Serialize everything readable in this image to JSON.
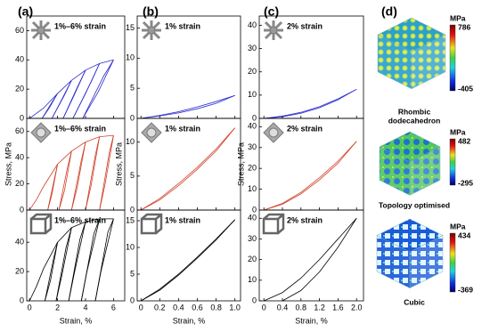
{
  "panels": [
    "(a)",
    "(b)",
    "(c)",
    "(d)"
  ],
  "lattices": [
    {
      "unit": "MPa",
      "max": 786,
      "min": -405,
      "name": [
        "Rhombic",
        "dodecahedron"
      ]
    },
    {
      "unit": "MPa",
      "max": 482,
      "min": -295,
      "name": [
        "Topology optimised"
      ]
    },
    {
      "unit": "MPa",
      "max": 434,
      "min": -369,
      "name": [
        "Cubic"
      ]
    }
  ],
  "chart_data": [
    {
      "type": "line",
      "annotation": "1%–6% strain",
      "xlim": [
        -0.2,
        6.8
      ],
      "ylim": [
        0,
        70
      ],
      "xticks": [
        0,
        2,
        4,
        6
      ],
      "xtick_labels": false,
      "yticks": [
        0,
        20,
        40,
        60
      ],
      "series": [
        {
          "color": "#2b2bd0",
          "x": [
            0,
            1,
            2,
            3,
            4,
            5,
            6
          ],
          "values": [
            0,
            7,
            17,
            26,
            33,
            37.5,
            40
          ]
        },
        {
          "color": "#2b2bd0",
          "x": [
            2,
            1.4,
            0.9,
            null,
            3,
            2.2,
            1.6,
            null,
            4,
            3.1,
            2.4,
            null,
            5,
            4,
            3.1,
            null,
            6,
            4.9,
            3.8
          ],
          "values": [
            17,
            7,
            0,
            null,
            26,
            11,
            0,
            null,
            33,
            14,
            0,
            null,
            37.5,
            17,
            0,
            null,
            40,
            18,
            0
          ]
        },
        {
          "color": "#2b2bd0",
          "x": [
            0.9,
            1.6,
            2,
            null,
            1.6,
            2.5,
            3,
            null,
            2.4,
            3.4,
            4,
            null,
            3.1,
            4.4,
            5,
            null,
            3.8,
            5.3,
            6
          ],
          "values": [
            0,
            11,
            17,
            null,
            0,
            16,
            26,
            null,
            0,
            21,
            33,
            null,
            0,
            25,
            37.5,
            null,
            0,
            29,
            40
          ]
        }
      ]
    },
    {
      "type": "line",
      "annotation": "1%–6% strain",
      "ylabel": "Stress, MPa",
      "xlim": [
        -0.2,
        6.8
      ],
      "ylim": [
        0,
        70
      ],
      "xticks": [
        0,
        2,
        4,
        6
      ],
      "xtick_labels": false,
      "yticks": [
        0,
        20,
        40,
        60
      ],
      "series": [
        {
          "color": "#d0402a",
          "x": [
            0,
            0.5,
            1,
            2,
            3,
            4,
            5,
            6
          ],
          "values": [
            0,
            8,
            18,
            35,
            45,
            52,
            56,
            57
          ]
        },
        {
          "color": "#d0402a",
          "x": [
            2,
            1.6,
            1.3,
            null,
            3,
            2.5,
            2.1,
            null,
            4,
            3.4,
            3,
            null,
            5,
            4.4,
            4,
            null,
            6,
            5.4,
            5
          ],
          "values": [
            35,
            12,
            0,
            null,
            45,
            15,
            0,
            null,
            52,
            17,
            0,
            null,
            56,
            19,
            0,
            null,
            57,
            20,
            0
          ]
        },
        {
          "color": "#d0402a",
          "x": [
            1.3,
            1.8,
            2,
            null,
            2.1,
            2.7,
            3,
            null,
            3,
            3.7,
            4,
            null,
            4,
            4.7,
            5,
            null,
            5,
            5.7,
            6
          ],
          "values": [
            0,
            25,
            35,
            null,
            0,
            32,
            45,
            null,
            0,
            38,
            52,
            null,
            0,
            42,
            56,
            null,
            0,
            44,
            57
          ]
        }
      ]
    },
    {
      "type": "line",
      "annotation": "1%–6% strain",
      "xlabel": "Strain, %",
      "xlim": [
        -0.2,
        6.8
      ],
      "ylim": [
        0,
        62
      ],
      "xticks": [
        0,
        2,
        4,
        6
      ],
      "yticks": [
        0,
        20,
        40
      ],
      "series": [
        {
          "color": "#000000",
          "x": [
            0,
            0.5,
            1,
            2,
            3,
            4,
            5,
            6
          ],
          "values": [
            0,
            10,
            22,
            40,
            50,
            54,
            56,
            56
          ]
        },
        {
          "color": "#000000",
          "x": [
            2,
            1.5,
            1.1,
            null,
            3,
            2.3,
            1.9,
            null,
            4,
            3.2,
            2.8,
            null,
            5,
            4.1,
            3.7,
            null,
            6,
            5.1,
            4.7
          ],
          "values": [
            40,
            14,
            0,
            null,
            50,
            17,
            0,
            null,
            54,
            19,
            0,
            null,
            56,
            20,
            0,
            null,
            56,
            20,
            0
          ]
        },
        {
          "color": "#000000",
          "x": [
            1.1,
            1.7,
            2,
            null,
            1.9,
            2.6,
            3,
            null,
            2.8,
            3.6,
            4,
            null,
            3.7,
            4.6,
            5,
            null,
            4.7,
            5.6,
            6
          ],
          "values": [
            0,
            28,
            40,
            null,
            0,
            36,
            50,
            null,
            0,
            42,
            54,
            null,
            0,
            46,
            56,
            null,
            0,
            47,
            56
          ]
        }
      ]
    },
    {
      "type": "line",
      "annotation": "1% strain",
      "xlim": [
        -0.04,
        1.06
      ],
      "ylim": [
        0,
        17
      ],
      "xticks": [
        0,
        0.2,
        0.4,
        0.6,
        0.8,
        1
      ],
      "xtick_labels": false,
      "yticks": [
        0,
        5,
        10,
        15
      ],
      "series": [
        {
          "color": "#2b2bd0",
          "x": [
            0,
            0.2,
            0.4,
            0.6,
            0.8,
            1
          ],
          "values": [
            0,
            0.5,
            1.1,
            1.9,
            2.8,
            3.8
          ]
        },
        {
          "color": "#2b2bd0",
          "x": [
            1,
            0.8,
            0.6,
            0.4,
            0.2,
            0
          ],
          "values": [
            3.8,
            2.5,
            1.6,
            0.9,
            0.4,
            0
          ]
        }
      ]
    },
    {
      "type": "line",
      "annotation": "1% strain",
      "ylabel": "Stress, MPa",
      "xlim": [
        -0.04,
        1.06
      ],
      "ylim": [
        0,
        13.5
      ],
      "xticks": [
        0,
        0.2,
        0.4,
        0.6,
        0.8,
        1
      ],
      "xtick_labels": false,
      "yticks": [
        0,
        5,
        10
      ],
      "series": [
        {
          "color": "#d0402a",
          "x": [
            0,
            0.2,
            0.4,
            0.6,
            0.8,
            1
          ],
          "values": [
            0,
            1.7,
            3.9,
            6.3,
            9,
            12.1
          ]
        },
        {
          "color": "#d0402a",
          "x": [
            1,
            0.8,
            0.6,
            0.4,
            0.2,
            0
          ],
          "values": [
            12.1,
            8.7,
            6,
            3.6,
            1.5,
            0
          ]
        }
      ]
    },
    {
      "type": "line",
      "annotation": "1% strain",
      "xlabel": "Strain, %",
      "xlim": [
        -0.04,
        1.06
      ],
      "ylim": [
        0,
        17
      ],
      "xticks": [
        0,
        0.2,
        0.4,
        0.6,
        0.8,
        {
          "value": 1,
          "label": "1.0"
        }
      ],
      "yticks": [
        0,
        5,
        10,
        15
      ],
      "series": [
        {
          "color": "#000000",
          "x": [
            0,
            0.2,
            0.4,
            0.6,
            0.8,
            1
          ],
          "values": [
            0,
            2.2,
            5,
            8.2,
            11.6,
            15.2
          ]
        },
        {
          "color": "#000000",
          "x": [
            1,
            0.8,
            0.6,
            0.4,
            0.2,
            0
          ],
          "values": [
            15.2,
            11.4,
            8,
            4.8,
            2,
            0
          ]
        }
      ]
    },
    {
      "type": "line",
      "annotation": "2% strain",
      "xlim": [
        -0.1,
        2.15
      ],
      "ylim": [
        0,
        44
      ],
      "xticks": [
        0,
        0.4,
        0.8,
        1.2,
        1.6,
        2
      ],
      "xtick_labels": false,
      "yticks": [
        0,
        10,
        20,
        30,
        40
      ],
      "series": [
        {
          "color": "#2b2bd0",
          "x": [
            0,
            0.4,
            0.8,
            1.2,
            1.6,
            2
          ],
          "values": [
            0,
            1,
            2.6,
            5,
            8.4,
            12.5
          ]
        },
        {
          "color": "#2b2bd0",
          "x": [
            2,
            1.6,
            1.2,
            0.8,
            0.4,
            0
          ],
          "values": [
            12.5,
            8,
            4.6,
            2.2,
            0.7,
            0
          ]
        }
      ]
    },
    {
      "type": "line",
      "annotation": "2% strain",
      "ylabel": "Stress, MPa",
      "xlim": [
        -0.1,
        2.15
      ],
      "ylim": [
        0,
        44
      ],
      "xticks": [
        0,
        0.4,
        0.8,
        1.2,
        1.6,
        2
      ],
      "xtick_labels": false,
      "yticks": [
        0,
        10,
        20,
        30,
        40
      ],
      "series": [
        {
          "color": "#d0402a",
          "x": [
            0,
            0.4,
            0.8,
            1.2,
            1.6,
            2
          ],
          "values": [
            0,
            3.2,
            8.5,
            15.5,
            23.5,
            33
          ]
        },
        {
          "color": "#d0402a",
          "x": [
            2,
            1.6,
            1.2,
            0.8,
            0.4,
            0
          ],
          "values": [
            33,
            22.5,
            14.5,
            7.8,
            2.8,
            0
          ]
        }
      ]
    },
    {
      "type": "line",
      "annotation": "2% strain",
      "xlabel": "Strain, %",
      "xlim": [
        -0.1,
        2.15
      ],
      "ylim": [
        0,
        44
      ],
      "xticks": [
        0,
        0.4,
        0.8,
        1.2,
        1.6,
        {
          "value": 2,
          "label": "2.0"
        }
      ],
      "yticks": [
        0,
        10,
        20,
        30,
        40
      ],
      "series": [
        {
          "color": "#000000",
          "x": [
            0,
            0.4,
            0.8,
            1.2,
            1.6,
            2
          ],
          "values": [
            0,
            4,
            11,
            20,
            30,
            40
          ]
        },
        {
          "color": "#000000",
          "x": [
            2,
            1.6,
            1.2,
            0.8,
            0.4
          ],
          "values": [
            40,
            26,
            14,
            5,
            0
          ]
        }
      ]
    }
  ]
}
